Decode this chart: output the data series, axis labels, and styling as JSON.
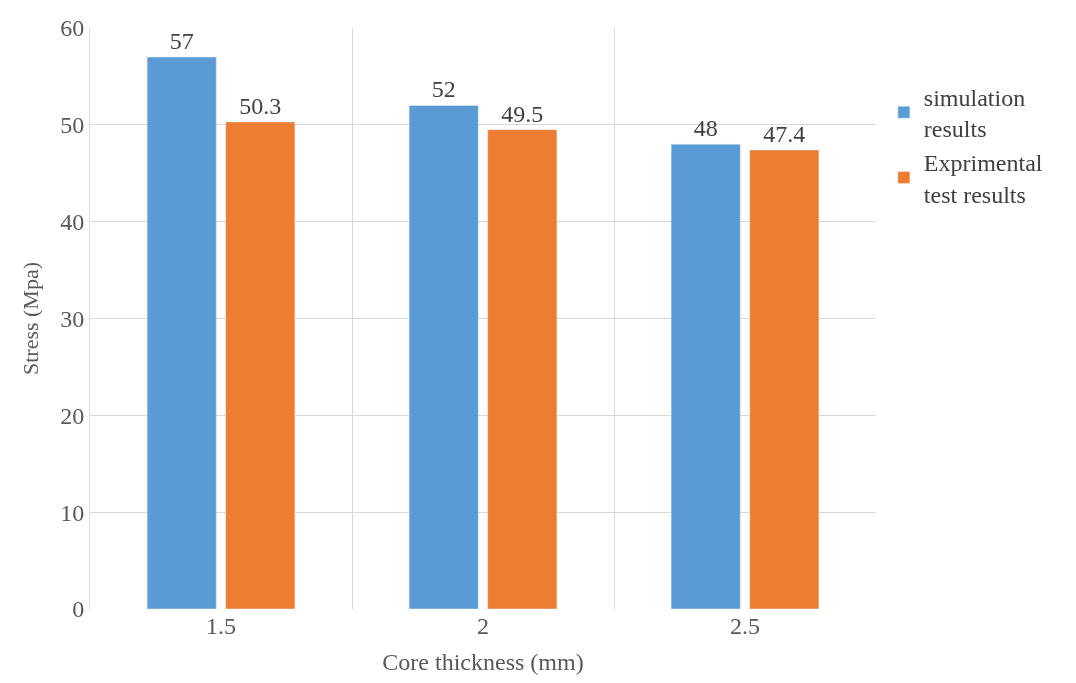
{
  "chart_data": {
    "type": "bar",
    "xlabel": "Core thickness (mm)",
    "ylabel": "Stress (Mpa)",
    "categories": [
      "1.5",
      "2",
      "2.5"
    ],
    "series": [
      {
        "name": "simulation results",
        "color": "#5b9bd5",
        "values": [
          57,
          52,
          48
        ]
      },
      {
        "name": "Exprimental test results",
        "color": "#ed7d31",
        "values": [
          50.3,
          49.5,
          47.4
        ]
      }
    ],
    "ylim": [
      0,
      60
    ],
    "yticks": [
      0,
      10,
      20,
      30,
      40,
      50,
      60
    ],
    "grid": true,
    "legend": "right",
    "data_labels": true
  }
}
